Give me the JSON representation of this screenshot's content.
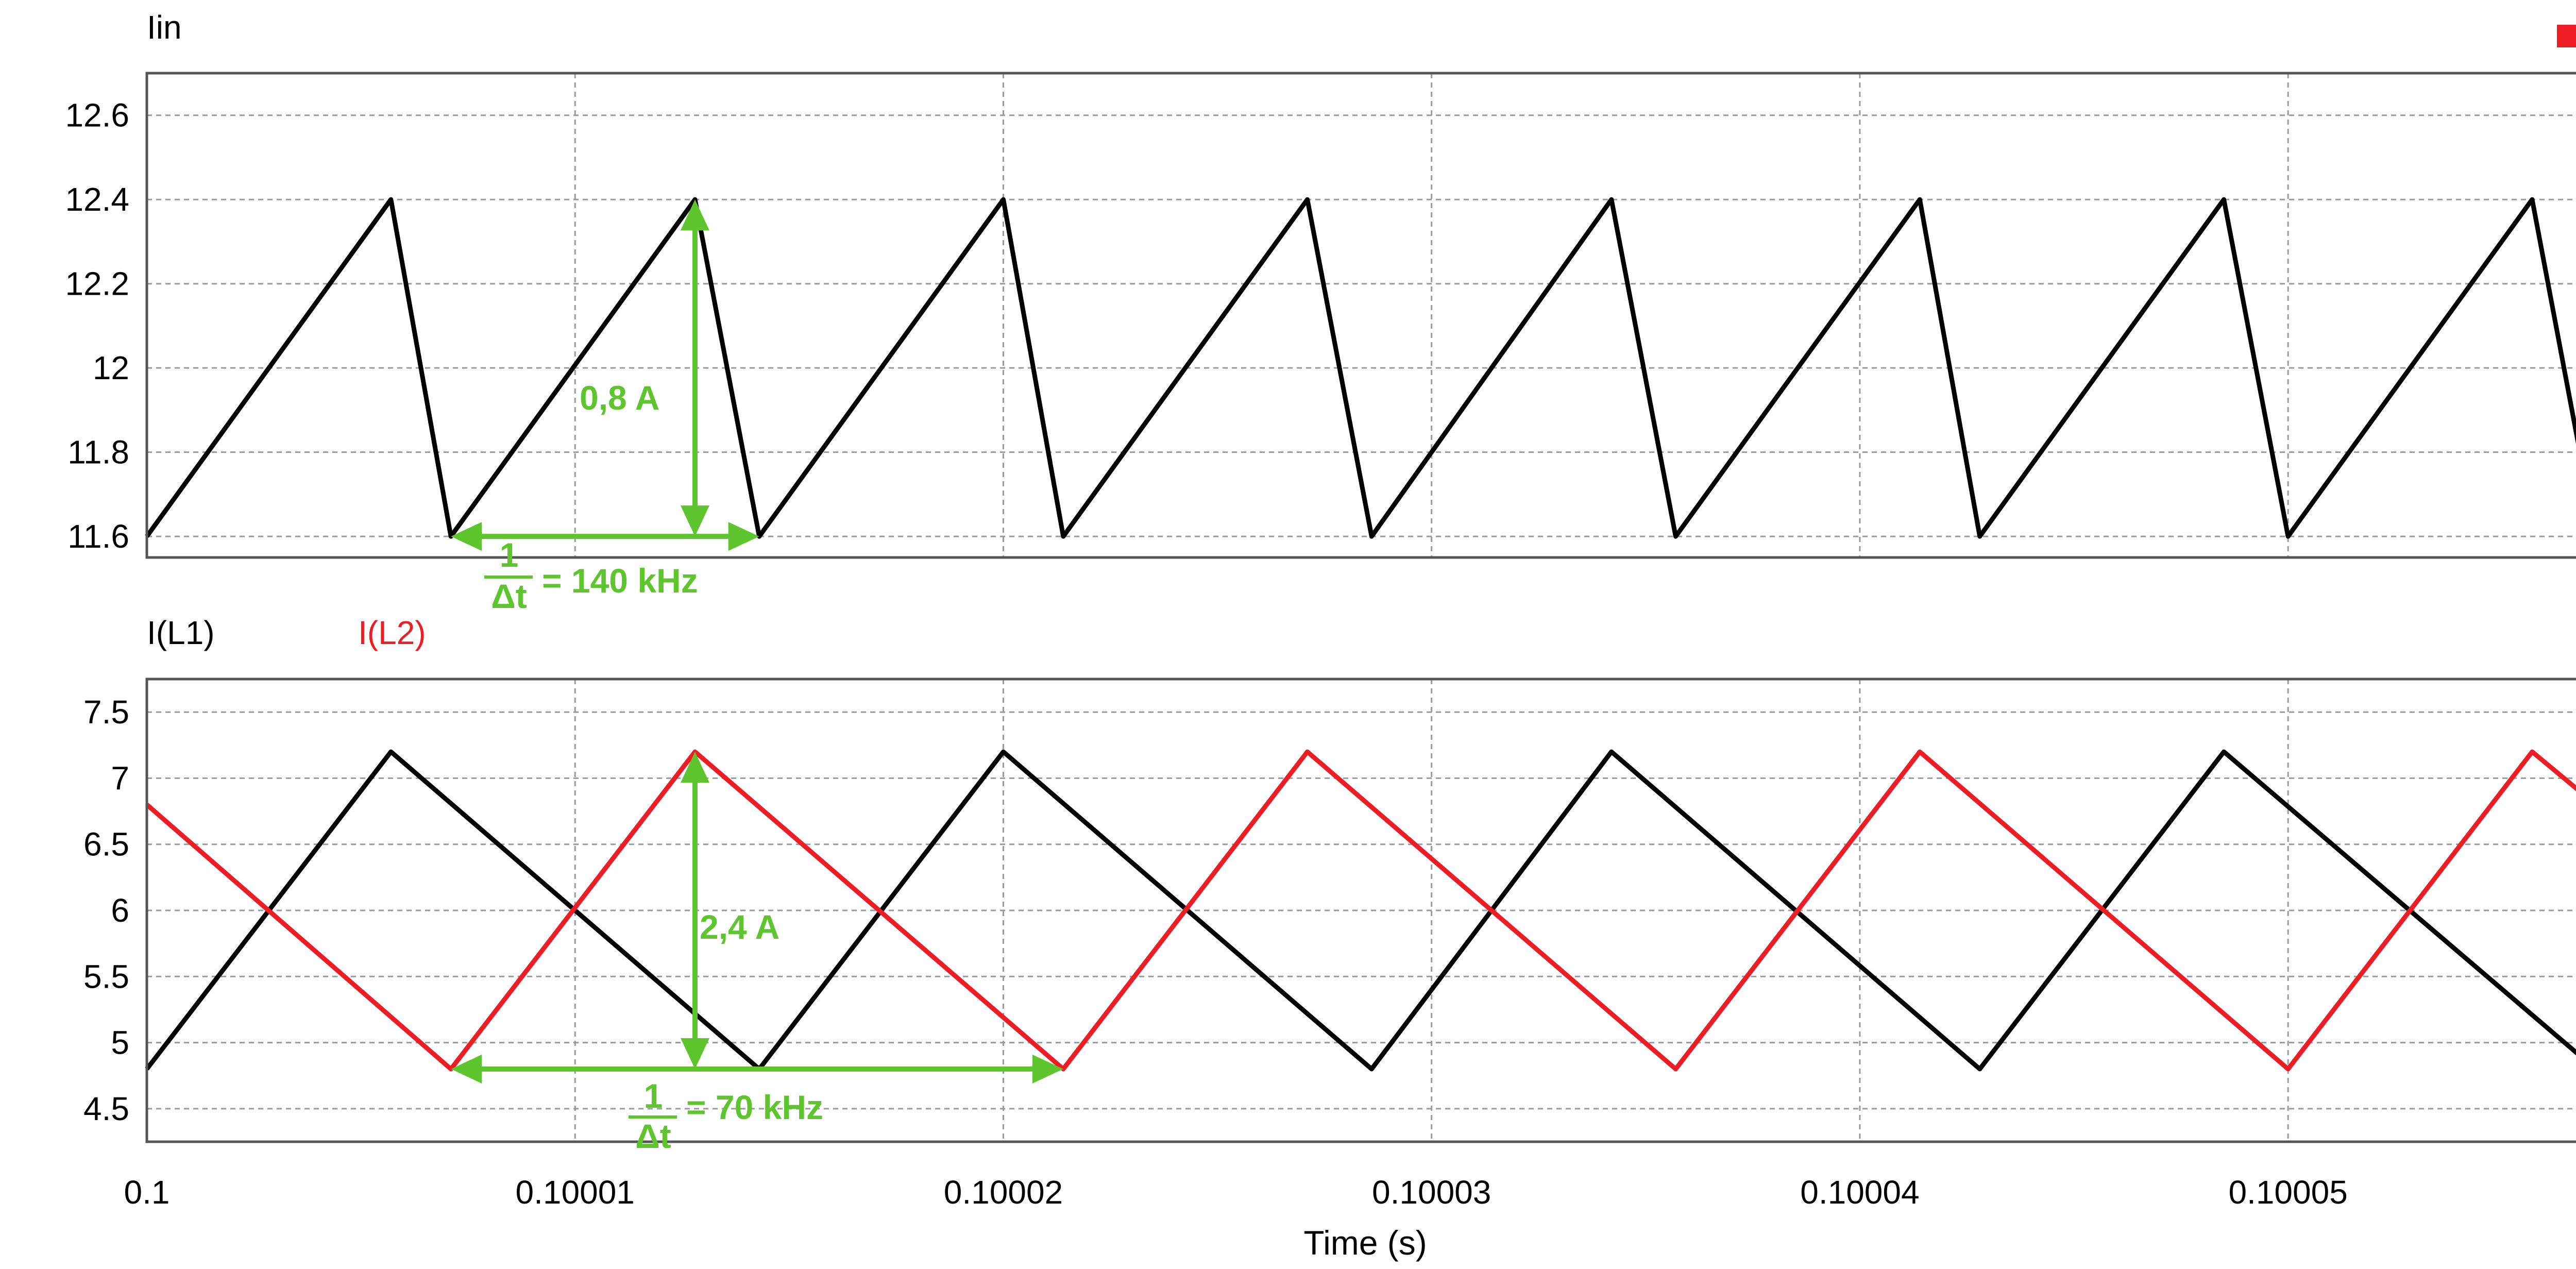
{
  "colors": {
    "grid": "#9a9a9a",
    "series_black": "#000000",
    "series_red": "#ee1c24",
    "annotation": "#5fc52e",
    "marker": "#ee1c24"
  },
  "chart_data": [
    {
      "type": "line",
      "title": "Iin",
      "xlim": [
        0.1,
        0.100057
      ],
      "ylim": [
        11.55,
        12.7
      ],
      "yticks": [
        12.6,
        12.4,
        12.2,
        12,
        11.8,
        11.6
      ],
      "ytick_labels": [
        "12.6",
        "12.4",
        "12.2",
        "12",
        "11.8",
        "11.6"
      ],
      "grid": true,
      "legend": "top-right",
      "series": [
        {
          "name": "Iin",
          "color": "#000000",
          "x": [
            0.1,
            0.1000057,
            0.1000071,
            0.1000128,
            0.1000143,
            0.10002,
            0.1000214,
            0.1000271,
            0.1000286,
            0.1000342,
            0.1000357,
            0.1000414,
            0.1000428,
            0.1000485,
            0.10005,
            0.1000557,
            0.100057
          ],
          "y": [
            11.6,
            12.4,
            11.6,
            12.4,
            11.6,
            12.4,
            11.6,
            12.4,
            11.6,
            12.4,
            11.6,
            12.4,
            11.6,
            12.4,
            11.6,
            12.4,
            11.7
          ]
        }
      ],
      "annotations": {
        "amplitude_label": "0,8 A",
        "freq_numerator": "1",
        "freq_denominator": "Δt",
        "freq_value": "= 140 kHz",
        "vertical_arrow_x": 0.1000128,
        "vertical_arrow_y": [
          11.6,
          12.4
        ],
        "horizontal_arrow_x": [
          0.1000071,
          0.1000143
        ],
        "horizontal_arrow_y": 11.6
      }
    },
    {
      "type": "line",
      "title": "",
      "legend_labels": [
        "I(L1)",
        "I(L2)"
      ],
      "xlim": [
        0.1,
        0.100057
      ],
      "ylim": [
        4.25,
        7.75
      ],
      "yticks": [
        7.5,
        7,
        6.5,
        6,
        5.5,
        5,
        4.5
      ],
      "ytick_labels": [
        "7.5",
        "7",
        "6.5",
        "6",
        "5.5",
        "5",
        "4.5"
      ],
      "xticks": [
        0.1,
        0.10001,
        0.10002,
        0.10003,
        0.10004,
        0.10005
      ],
      "xtick_labels": [
        "0.1",
        "0.10001",
        "0.10002",
        "0.10003",
        "0.10004",
        "0.10005"
      ],
      "xlabel": "Time (s)",
      "grid": true,
      "series": [
        {
          "name": "I(L1)",
          "color": "#000000",
          "x": [
            0.1,
            0.1000057,
            0.1000143,
            0.10002,
            0.1000286,
            0.1000342,
            0.1000428,
            0.1000485,
            0.100057
          ],
          "y": [
            4.8,
            7.2,
            4.8,
            7.2,
            4.8,
            7.2,
            4.8,
            7.2,
            4.85
          ]
        },
        {
          "name": "I(L2)",
          "color": "#ee1c24",
          "x": [
            0.1,
            0.1000071,
            0.1000128,
            0.1000214,
            0.1000271,
            0.1000357,
            0.1000414,
            0.10005,
            0.1000557,
            0.100057
          ],
          "y": [
            6.8,
            4.8,
            7.2,
            4.8,
            7.2,
            4.8,
            7.2,
            4.8,
            7.2,
            6.85
          ]
        }
      ],
      "annotations": {
        "amplitude_label": "2,4 A",
        "freq_numerator": "1",
        "freq_denominator": "Δt",
        "freq_value": "= 70 kHz",
        "vertical_arrow_x": 0.1000128,
        "vertical_arrow_y": [
          4.8,
          7.2
        ],
        "horizontal_arrow_x": [
          0.1000071,
          0.1000214
        ],
        "horizontal_arrow_y": 4.8
      }
    }
  ]
}
